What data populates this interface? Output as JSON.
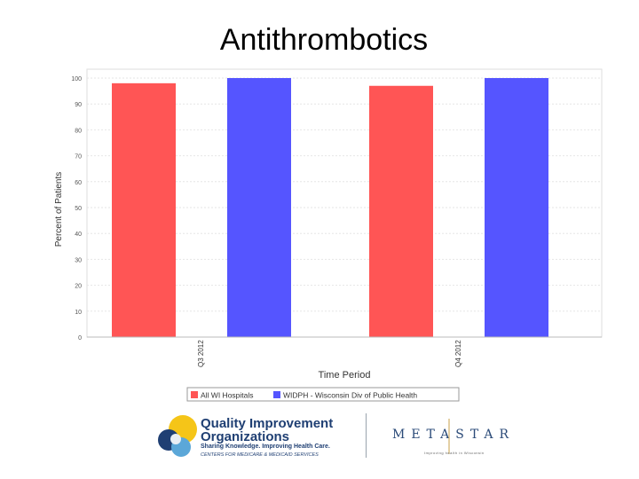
{
  "slide": {
    "title": "Antithrombotics"
  },
  "chart_data": {
    "type": "bar",
    "categories": [
      "Q3 2012",
      "Q4 2012"
    ],
    "series": [
      {
        "name": "All WI Hospitals",
        "values": [
          98,
          97
        ],
        "color": "#ff5555"
      },
      {
        "name": "WIDPH - Wisconsin Div of Public Health",
        "values": [
          100,
          100
        ],
        "color": "#5555ff"
      }
    ],
    "xlabel": "Time Period",
    "ylabel": "Percent of Patients",
    "ylim": [
      0,
      100
    ],
    "yticks": [
      "0",
      "10",
      "20",
      "30",
      "40",
      "50",
      "60",
      "70",
      "80",
      "90",
      "100"
    ],
    "grid": true,
    "legend": "bottom"
  },
  "footer": {
    "qio_line1": "Quality Improvement",
    "qio_line2": "Organizations",
    "qio_tagline": "Sharing Knowledge. Improving Health Care.",
    "qio_sub": "CENTERS FOR MEDICARE & MEDICAID SERVICES",
    "metastar": "METASTAR",
    "metastar_tag": "Improving health in Wisconsin"
  }
}
